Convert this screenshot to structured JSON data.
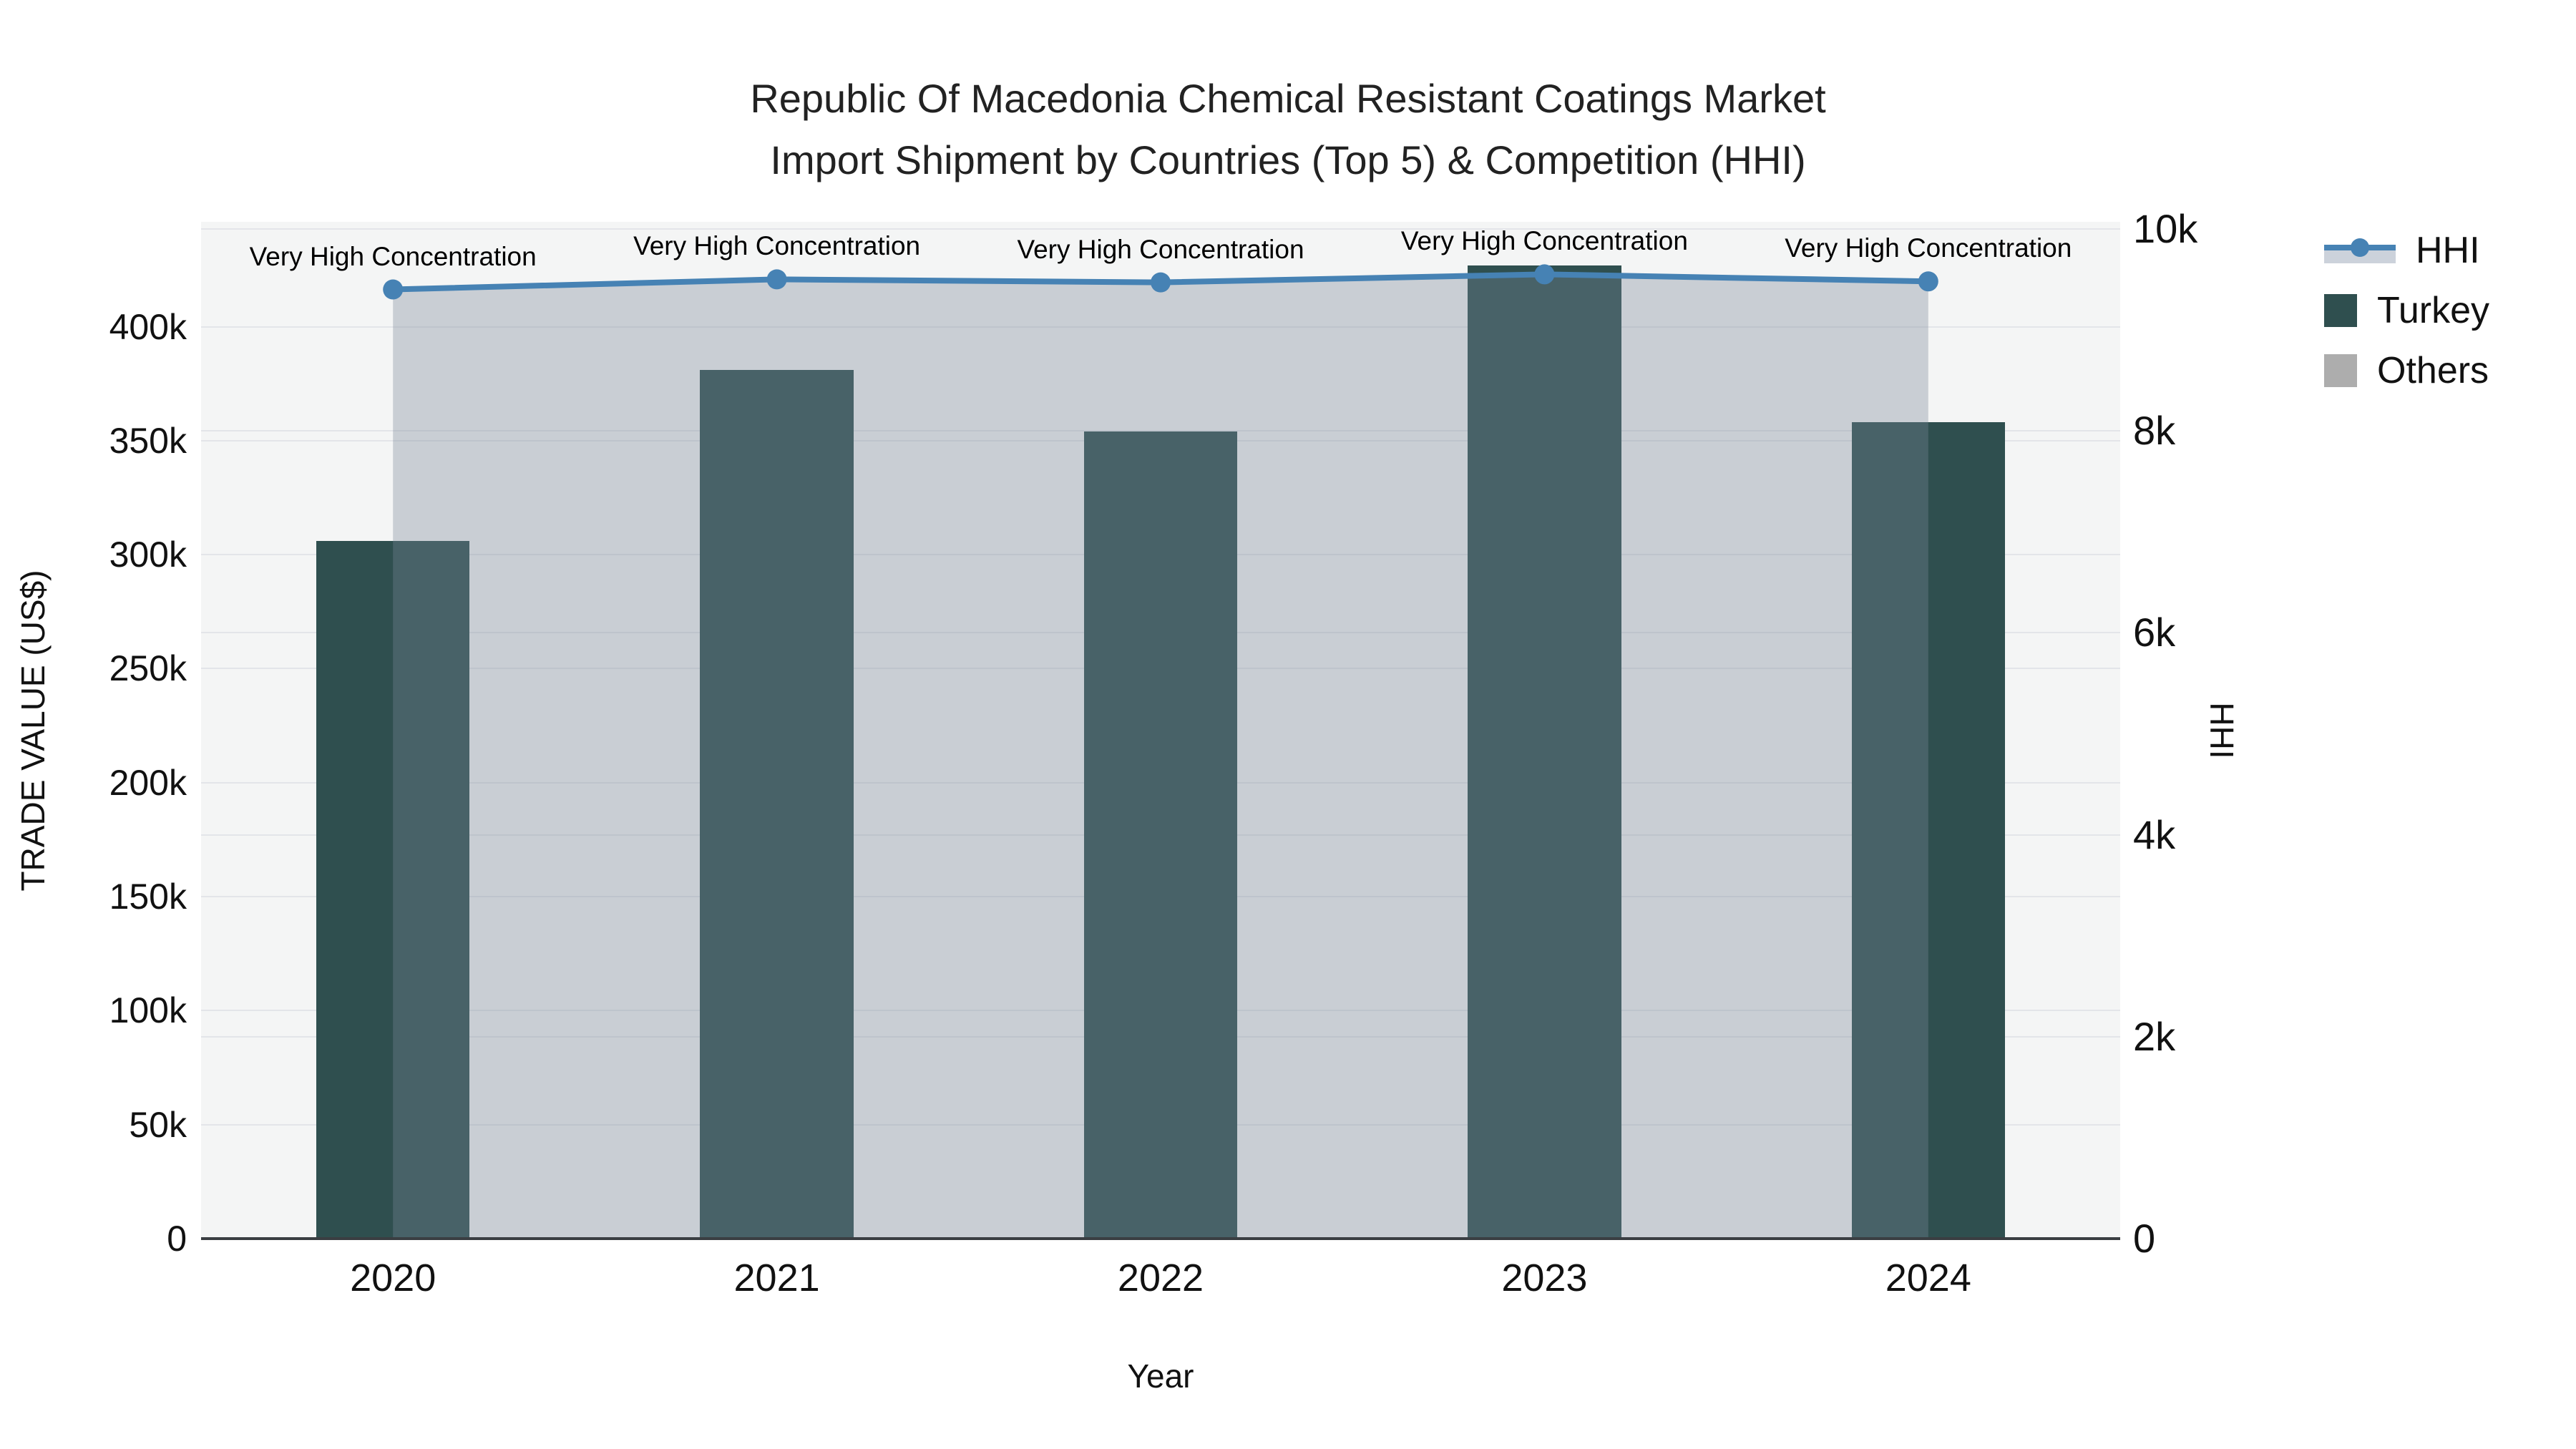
{
  "title": {
    "line1": "Republic Of Macedonia Chemical Resistant Coatings Market",
    "line2": "Import Shipment by Countries (Top 5) & Competition (HHI)"
  },
  "axes": {
    "y_left": {
      "title": "TRADE VALUE (US$)",
      "tick_labels": [
        "0",
        "50k",
        "100k",
        "150k",
        "200k",
        "250k",
        "300k",
        "350k",
        "400k"
      ],
      "tick_values": [
        0,
        50000,
        100000,
        150000,
        200000,
        250000,
        300000,
        350000,
        400000
      ],
      "range": [
        0,
        446000
      ]
    },
    "y_right": {
      "title": "HHI",
      "tick_labels": [
        "0",
        "2k",
        "4k",
        "6k",
        "8k",
        "10k"
      ],
      "tick_values": [
        0,
        2000,
        4000,
        6000,
        8000,
        10000
      ],
      "range": [
        0,
        10070
      ]
    },
    "x": {
      "title": "Year",
      "tick_labels": [
        "2020",
        "2021",
        "2022",
        "2023",
        "2024"
      ]
    }
  },
  "legend": {
    "items": [
      {
        "label": "HHI",
        "type": "line",
        "color": "#4682B4",
        "fill": "#ccd2db"
      },
      {
        "label": "Turkey",
        "type": "square",
        "color": "#2F4F4F"
      },
      {
        "label": "Others",
        "type": "square",
        "color": "#ADADAD"
      }
    ]
  },
  "annotations": {
    "per_year": [
      "Very High Concentration",
      "Very High Concentration",
      "Very High Concentration",
      "Very High Concentration",
      "Very High Concentration"
    ]
  },
  "chart_data": {
    "type": "bar+line",
    "categories": [
      "2020",
      "2021",
      "2022",
      "2023",
      "2024"
    ],
    "series": [
      {
        "name": "Turkey",
        "type": "bar",
        "yaxis": "left",
        "color": "#2F4F4F",
        "values": [
          306000,
          381000,
          354000,
          427000,
          358000
        ]
      },
      {
        "name": "HHI",
        "type": "line",
        "yaxis": "right",
        "color": "#4682B4",
        "fill_color": "rgba(119,136,153,0.35)",
        "values": [
          9400,
          9500,
          9470,
          9550,
          9480
        ]
      }
    ],
    "title": "Republic Of Macedonia Chemical Resistant Coatings Market Import Shipment by Countries (Top 5) & Competition (HHI)",
    "xlabel": "Year",
    "ylabel": "TRADE VALUE (US$)",
    "ylabel_right": "HHI",
    "ylim_left": [
      0,
      446000
    ],
    "ylim_right": [
      0,
      10070
    ],
    "grid": true,
    "legend_position": "top-right",
    "plot_bg": "#f4f5f5",
    "bar_width_fraction": 0.4
  }
}
